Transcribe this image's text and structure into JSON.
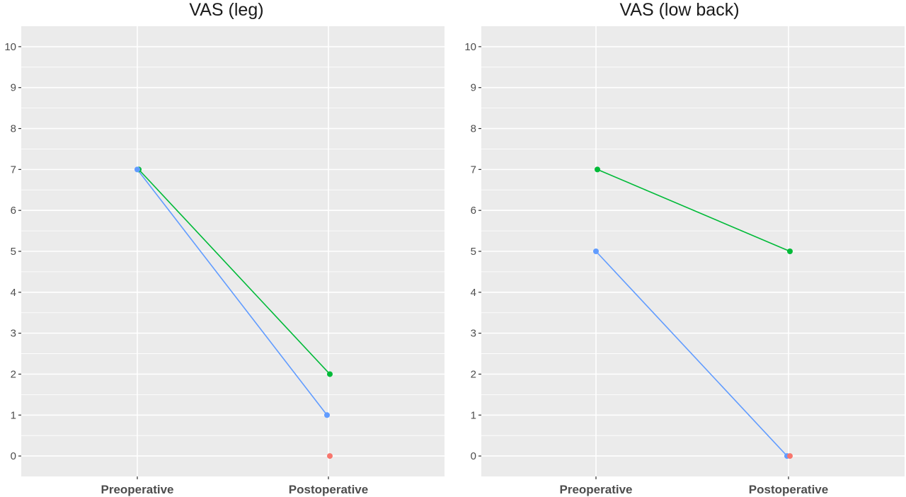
{
  "colors": {
    "panel_background": "#EBEBEB",
    "grid": "#FFFFFF",
    "axis_text": "#4D4D4D",
    "series_colors": [
      "#00BA38",
      "#619CFF",
      "#F8766D"
    ]
  },
  "chart_data": [
    {
      "type": "line",
      "title": "VAS (leg)",
      "xlabel": "",
      "ylabel": "",
      "categories": [
        "Preoperative",
        "Postoperative"
      ],
      "ylim": [
        -0.5,
        10.5
      ],
      "yticks": [
        0,
        1,
        2,
        3,
        4,
        5,
        6,
        7,
        8,
        9,
        10
      ],
      "grid": true,
      "legend": "none",
      "series": [
        {
          "color": "#00BA38",
          "values": [
            7,
            2
          ]
        },
        {
          "color": "#619CFF",
          "values": [
            7,
            1
          ]
        },
        {
          "color": "#F8766D",
          "values": [
            null,
            0
          ]
        }
      ]
    },
    {
      "type": "line",
      "title": "VAS (low back)",
      "xlabel": "",
      "ylabel": "",
      "categories": [
        "Preoperative",
        "Postoperative"
      ],
      "ylim": [
        -0.5,
        10.5
      ],
      "yticks": [
        0,
        1,
        2,
        3,
        4,
        5,
        6,
        7,
        8,
        9,
        10
      ],
      "grid": true,
      "legend": "none",
      "series": [
        {
          "color": "#00BA38",
          "values": [
            7,
            5
          ]
        },
        {
          "color": "#619CFF",
          "values": [
            5,
            0
          ]
        },
        {
          "color": "#F8766D",
          "values": [
            null,
            0
          ]
        }
      ]
    }
  ]
}
